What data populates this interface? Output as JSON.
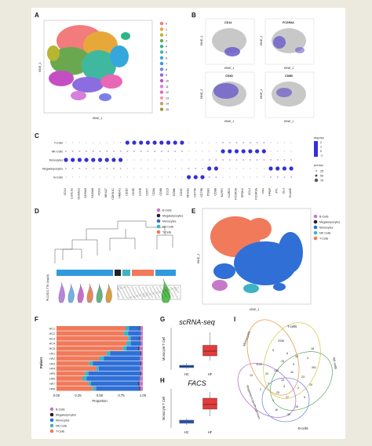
{
  "panels": {
    "A": {
      "label": "A",
      "legend": [
        "0",
        "1",
        "2",
        "3",
        "4",
        "5",
        "6",
        "7",
        "8",
        "9",
        "10",
        "11",
        "12",
        "13",
        "14",
        "15"
      ],
      "xlabel": "tSNE_1",
      "ylabel": "tSNE_2"
    },
    "B": {
      "label": "B",
      "subplots": [
        "CD14",
        "FCGR3A",
        "CD3D",
        "CD8B"
      ],
      "xlabel": "tSNE_1",
      "ylabel": "tSNE_2"
    },
    "C": {
      "label": "C",
      "rows": [
        "T-Cells",
        "NK-Cells",
        "Monocytes",
        "Megakaryocytes",
        "B-Cells"
      ],
      "genes": [
        "CD14",
        "LGALS1",
        "S100A12",
        "S100A9",
        "S100A8",
        "FCN1",
        "MS4A7",
        "CDKN1C",
        "HMOX1",
        "CD3D",
        "CD3E",
        "LDHB",
        "CCR7",
        "CD8A",
        "CD8B",
        "CCL5",
        "GZMK",
        "CD3G",
        "MS4A1",
        "CD79A",
        "CD79B",
        "ITGB3",
        "CD8B",
        "KLRF1",
        "KLRD1",
        "FCGR3A",
        "SPON2",
        "XCL2",
        "FCGR3A",
        "PF4",
        "PPBP",
        "FTL",
        "CLU",
        "ELANE"
      ],
      "legend_title": "avg.exp",
      "legend_ticks": [
        "2",
        "1",
        "0",
        "-1"
      ],
      "pct_title": "pct.exp",
      "pct_ticks": [
        "25",
        "50",
        "75"
      ]
    },
    "D": {
      "label": "D",
      "legend": [
        "B-Cells",
        "Megakaryocytes",
        "Monocytes",
        "NK-Cells",
        "T-Cells"
      ],
      "ylabel": "PLCXD1 TTN (log10)"
    },
    "E": {
      "label": "E",
      "legend": [
        "B-Cells",
        "Megakaryocytes",
        "Monocytes",
        "NK-Cells",
        "T-Cells"
      ],
      "xlabel": "tSNE_1",
      "ylabel": "tSNE_2"
    },
    "F": {
      "label": "F",
      "ylabel": "Patient",
      "xlabel": "Proportion",
      "ticks": [
        "0.00",
        "0.25",
        "0.50",
        "0.75",
        "1.00"
      ],
      "patients": [
        "HC1",
        "HC2",
        "HC3",
        "HC4",
        "HC5",
        "HF1",
        "HF2",
        "HF3",
        "HF4",
        "HF5",
        "HF6",
        "HF7",
        "HF8"
      ],
      "legend": [
        "B-Cells",
        "Megakaryocytes",
        "Monocytes",
        "NK-Cells",
        "T-Cells"
      ]
    },
    "G": {
      "label": "G",
      "title": "scRNA-seq",
      "ylabel": "Monocyte:T Cell",
      "groups": [
        "HC",
        "HF"
      ]
    },
    "H": {
      "label": "H",
      "title": "FACS",
      "ylabel": "Monocyte:T Cell",
      "groups": [
        "HC",
        "HF"
      ]
    },
    "I": {
      "label": "I",
      "sets": [
        "T-cells",
        "Monocytes",
        "NK-cells",
        "Megakaryocytes/Progenitors",
        "B-cells"
      ],
      "numbers": [
        "3336",
        "1142",
        "261",
        "33",
        "18",
        "6",
        "8",
        "15",
        "142",
        "42",
        "23",
        "1",
        "4",
        "2",
        "25",
        "27",
        "5",
        "1",
        "10",
        "20",
        "9",
        "19",
        "2",
        "3",
        "18",
        "16",
        "39",
        "13"
      ]
    }
  },
  "colors": {
    "bcell": "#c879c6",
    "mega": "#222222",
    "mono": "#2f6fd6",
    "nk": "#3fb3c5",
    "tcell": "#f07a5a",
    "dot": "#3530d8",
    "tsne_grey": "#c8c8c8",
    "boxplot_red": "#e43b3b",
    "boxplot_blue": "#3366cc"
  },
  "chart_data": [
    {
      "type": "bar",
      "title": "",
      "xlabel": "Proportion",
      "ylabel": "Patient",
      "categories": [
        "HC1",
        "HC2",
        "HC3",
        "HC4",
        "HC5",
        "HF1",
        "HF2",
        "HF3",
        "HF4",
        "HF5",
        "HF6",
        "HF7",
        "HF8"
      ],
      "series": [
        {
          "name": "B-Cells",
          "values": [
            0.03,
            0.02,
            0.03,
            0.02,
            0.04,
            0.02,
            0.03,
            0.02,
            0.03,
            0.02,
            0.03,
            0.04,
            0.03
          ]
        },
        {
          "name": "Megakaryocytes",
          "values": [
            0.01,
            0.0,
            0.01,
            0.0,
            0.01,
            0.01,
            0.0,
            0.01,
            0.0,
            0.01,
            0.0,
            0.01,
            0.01
          ]
        },
        {
          "name": "Monocytes",
          "values": [
            0.12,
            0.15,
            0.1,
            0.12,
            0.14,
            0.35,
            0.42,
            0.55,
            0.48,
            0.6,
            0.62,
            0.55,
            0.5
          ]
        },
        {
          "name": "NK-Cells",
          "values": [
            0.04,
            0.05,
            0.03,
            0.05,
            0.04,
            0.04,
            0.05,
            0.04,
            0.03,
            0.04,
            0.05,
            0.03,
            0.04
          ]
        },
        {
          "name": "T-Cells",
          "values": [
            0.8,
            0.78,
            0.83,
            0.81,
            0.77,
            0.58,
            0.5,
            0.38,
            0.46,
            0.33,
            0.3,
            0.37,
            0.42
          ]
        }
      ],
      "xlim": [
        0,
        1
      ]
    },
    {
      "type": "box",
      "title": "scRNA-seq",
      "ylabel": "Monocyte:T Cell",
      "categories": [
        "HC",
        "HF"
      ],
      "values": [
        {
          "q1": 0.1,
          "median": 0.15,
          "q3": 0.2,
          "min": 0.05,
          "max": 0.3
        },
        {
          "q1": 0.6,
          "median": 0.8,
          "q3": 1.05,
          "min": 0.4,
          "max": 1.6
        }
      ],
      "ylim": [
        0,
        1.8
      ]
    },
    {
      "type": "box",
      "title": "FACS",
      "ylabel": "Monocyte:T Cell",
      "categories": [
        "HC",
        "HF"
      ],
      "values": [
        {
          "q1": 0.6,
          "median": 0.8,
          "q3": 1.0,
          "min": 0.4,
          "max": 1.2
        },
        {
          "q1": 2.4,
          "median": 3.0,
          "q3": 3.8,
          "min": 1.5,
          "max": 4.6
        }
      ],
      "ylim": [
        0,
        5
      ]
    }
  ]
}
